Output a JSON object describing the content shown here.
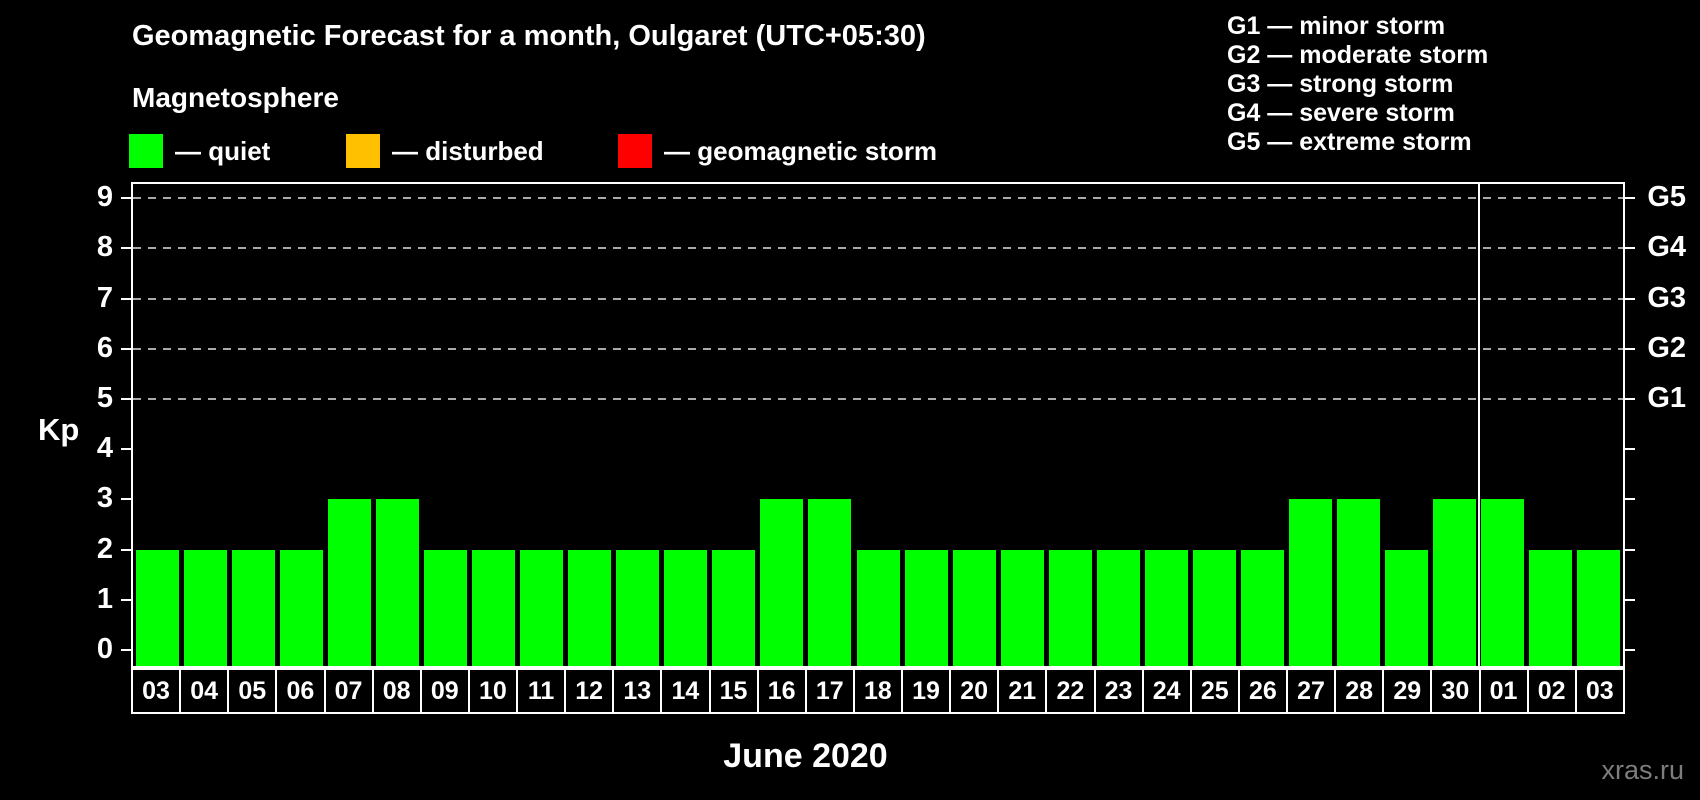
{
  "title": "Geomagnetic Forecast for a month, Oulgaret (UTC+05:30)",
  "subtitle": "Magnetosphere",
  "watermark": "xras.ru",
  "colors": {
    "background": "#000000",
    "quiet": "#00ff00",
    "disturbed": "#ffc000",
    "storm": "#ff0000",
    "axis": "#ffffff",
    "gridline": "#aaaaaa",
    "watermark": "#7d7d7d"
  },
  "legend": {
    "items": [
      {
        "name": "quiet",
        "label": "— quiet",
        "color": "#00ff00",
        "x": 0
      },
      {
        "name": "disturbed",
        "label": "— disturbed",
        "color": "#ffc000",
        "x": 217
      },
      {
        "name": "storm",
        "label": "— geomagnetic storm",
        "color": "#ff0000",
        "x": 489
      }
    ]
  },
  "storm_legend": {
    "lines": [
      "G1 — minor storm",
      "G2 — moderate storm",
      "G3 — strong storm",
      "G4 — severe storm",
      "G5 — extreme storm"
    ]
  },
  "chart_data": {
    "type": "bar",
    "title": "Geomagnetic Forecast for a month, Oulgaret (UTC+05:30)",
    "xlabel": "June 2020",
    "ylabel": "Kp",
    "ylim": [
      0,
      9
    ],
    "grid": "dashed horizontal at Kp 5-9",
    "legend_position": "top-left and top-right",
    "bar_color": "#00ff00",
    "categories": [
      "03",
      "04",
      "05",
      "06",
      "07",
      "08",
      "09",
      "10",
      "11",
      "12",
      "13",
      "14",
      "15",
      "16",
      "17",
      "18",
      "19",
      "20",
      "21",
      "22",
      "23",
      "24",
      "25",
      "26",
      "27",
      "28",
      "29",
      "30",
      "01",
      "02",
      "03"
    ],
    "values": [
      2,
      2,
      2,
      2,
      3,
      3,
      2,
      2,
      2,
      2,
      2,
      2,
      2,
      3,
      3,
      2,
      2,
      2,
      2,
      2,
      2,
      2,
      2,
      2,
      3,
      3,
      2,
      3,
      3,
      2,
      2
    ],
    "yticks": [
      0,
      1,
      2,
      3,
      4,
      5,
      6,
      7,
      8,
      9
    ],
    "gridlines_at": [
      5,
      6,
      7,
      8,
      9
    ],
    "right_axis_labels": [
      {
        "label": "G1",
        "value": 5
      },
      {
        "label": "G2",
        "value": 6
      },
      {
        "label": "G3",
        "value": 7
      },
      {
        "label": "G4",
        "value": 8
      },
      {
        "label": "G5",
        "value": 9
      }
    ],
    "month_separator_index": 28
  }
}
